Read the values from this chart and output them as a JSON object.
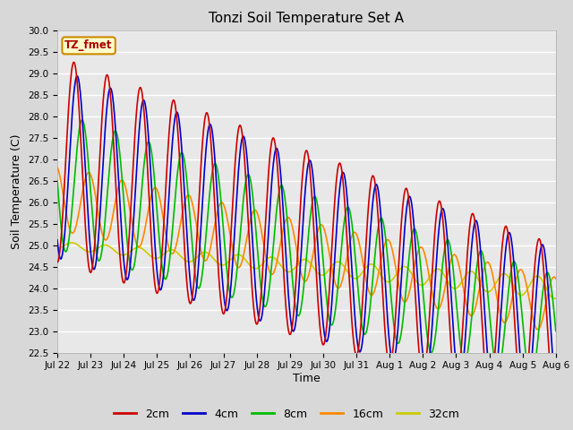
{
  "title": "Tonzi Soil Temperature Set A",
  "xlabel": "Time",
  "ylabel": "Soil Temperature (C)",
  "ylim": [
    22.5,
    30.0
  ],
  "yticks": [
    22.5,
    23.0,
    23.5,
    24.0,
    24.5,
    25.0,
    25.5,
    26.0,
    26.5,
    27.0,
    27.5,
    28.0,
    28.5,
    29.0,
    29.5,
    30.0
  ],
  "xtick_labels": [
    "Jul 22",
    "Jul 23",
    "Jul 24",
    "Jul 25",
    "Jul 26",
    "Jul 27",
    "Jul 28",
    "Jul 29",
    "Jul 30",
    "Jul 31",
    "Aug 1",
    "Aug 2",
    "Aug 3",
    "Aug 4",
    "Aug 5",
    "Aug 6"
  ],
  "colors": {
    "2cm": "#cc0000",
    "4cm": "#0000cc",
    "8cm": "#00bb00",
    "16cm": "#ff8800",
    "32cm": "#cccc00"
  },
  "legend_label": "TZ_fmet",
  "bg_color": "#d8d8d8",
  "plot_bg_color": "#e8e8e8",
  "n_points": 1000,
  "days": 15
}
